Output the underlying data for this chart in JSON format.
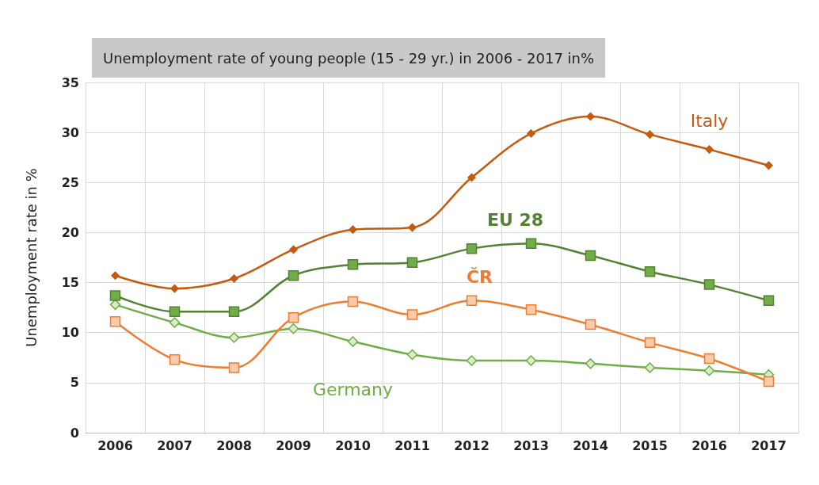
{
  "chart_data": {
    "type": "line",
    "title": "Unemployment rate of young people (15 - 29 yr.) in 2006 - 2017 in%",
    "ylabel": "Unemployment rate in %",
    "categories": [
      "2006",
      "2007",
      "2008",
      "2009",
      "2010",
      "2011",
      "2012",
      "2013",
      "2014",
      "2015",
      "2016",
      "2017"
    ],
    "series": [
      {
        "name": "Italy",
        "color": "#c55a11",
        "marker": "diamond",
        "values": [
          15.7,
          14.4,
          15.4,
          18.3,
          20.3,
          20.5,
          25.5,
          29.9,
          31.6,
          29.8,
          28.3,
          26.7
        ]
      },
      {
        "name": "EU 28",
        "color": "#548235",
        "marker": "square",
        "values": [
          13.7,
          12.1,
          12.1,
          15.7,
          16.8,
          17.0,
          18.4,
          18.9,
          17.7,
          16.1,
          14.8,
          13.2
        ]
      },
      {
        "name": "ČR",
        "color": "#ed7d31",
        "marker": "square",
        "values": [
          11.1,
          7.3,
          6.5,
          11.5,
          13.1,
          11.8,
          13.2,
          12.3,
          10.8,
          9.0,
          7.4,
          5.1
        ]
      },
      {
        "name": "Germany",
        "color": "#70ad47",
        "marker": "diamond",
        "values": [
          12.8,
          11.0,
          9.5,
          10.4,
          9.1,
          7.8,
          7.2,
          7.2,
          6.9,
          6.5,
          6.2,
          5.8
        ]
      }
    ],
    "ylim": [
      0,
      35
    ],
    "yticks": [
      0,
      5,
      10,
      15,
      20,
      25,
      30,
      35
    ],
    "grid": true,
    "legend": false,
    "line_style": "solid"
  }
}
